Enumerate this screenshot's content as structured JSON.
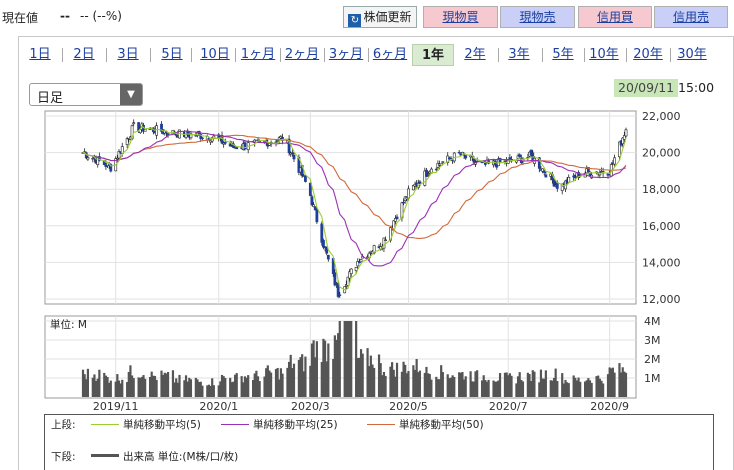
{
  "header": {
    "price_label": "現在値",
    "price_value": "--",
    "price_change": "-- (--%)",
    "buttons": {
      "refresh": "株価更新",
      "spot_buy": "現物買",
      "spot_sell": "現物売",
      "margin_buy": "信用買",
      "margin_sell": "信用売"
    }
  },
  "tabs": [
    "1日",
    "2日",
    "3日",
    "5日",
    "10日",
    "1ヶ月",
    "2ヶ月",
    "3ヶ月",
    "6ヶ月",
    "1年",
    "2年",
    "3年",
    "5年",
    "10年",
    "20年",
    "30年"
  ],
  "active_tab": "1年",
  "period_select": {
    "value": "日足"
  },
  "datetime": {
    "date": "20/09/11",
    "time": "15:00"
  },
  "colors": {
    "ma5": "#9acd32",
    "ma25": "#9b30b5",
    "ma50": "#d2693c",
    "up": "#ffffff",
    "down": "#1f3f9a",
    "volume": "#555555"
  },
  "chart_data": [
    {
      "type": "candlestick",
      "title": "",
      "y_ticks": [
        "22,000",
        "20,000",
        "18,000",
        "16,000",
        "14,000",
        "12,000"
      ],
      "ylim": [
        12000,
        22000
      ],
      "x_ticks": [
        "2019/11",
        "2020/1",
        "2020/3",
        "2020/5",
        "2020/7",
        "2020/9"
      ],
      "close_approx": {
        "dates": [
          "2019-10-15",
          "2019-11-01",
          "2019-11-15",
          "2019-12-01",
          "2019-12-15",
          "2020-01-01",
          "2020-01-15",
          "2020-02-01",
          "2020-02-15",
          "2020-03-01",
          "2020-03-10",
          "2020-03-19",
          "2020-04-01",
          "2020-04-15",
          "2020-05-01",
          "2020-05-15",
          "2020-06-01",
          "2020-06-15",
          "2020-07-01",
          "2020-07-15",
          "2020-08-01",
          "2020-08-15",
          "2020-09-01",
          "2020-09-11"
        ],
        "values": [
          20000,
          19200,
          21400,
          21200,
          21000,
          20900,
          20300,
          20500,
          20800,
          18000,
          15000,
          12300,
          14200,
          15100,
          17800,
          19200,
          19900,
          19300,
          19500,
          19800,
          18100,
          18900,
          19000,
          21300
        ]
      },
      "series": [
        {
          "name": "単純移動平均(5)",
          "legend_section": "上段"
        },
        {
          "name": "単純移動平均(25)",
          "legend_section": "上段"
        },
        {
          "name": "単純移動平均(50)",
          "legend_section": "上段"
        }
      ]
    },
    {
      "type": "bar",
      "unit_label": "単位: M",
      "y_ticks": [
        "4M",
        "3M",
        "2M",
        "1M"
      ],
      "ylim": [
        0,
        4
      ],
      "volume_approx_M": [
        1.2,
        1.0,
        1.3,
        1.1,
        0.9,
        0.8,
        1.0,
        1.1,
        1.3,
        1.8,
        2.6,
        3.9,
        2.0,
        1.5,
        1.6,
        1.3,
        1.2,
        1.1,
        1.0,
        1.1,
        1.2,
        0.9,
        1.0,
        1.4
      ],
      "legend_section": "下段",
      "legend_name": "出来高 単位:(M株/口/枚)"
    }
  ],
  "legend": {
    "upper_title": "上段:",
    "lower_title": "下段:",
    "ma5": "単純移動平均(5)",
    "ma25": "単純移動平均(25)",
    "ma50": "単純移動平均(50)",
    "volume": "出来高 単位:(M株/口/枚)"
  }
}
